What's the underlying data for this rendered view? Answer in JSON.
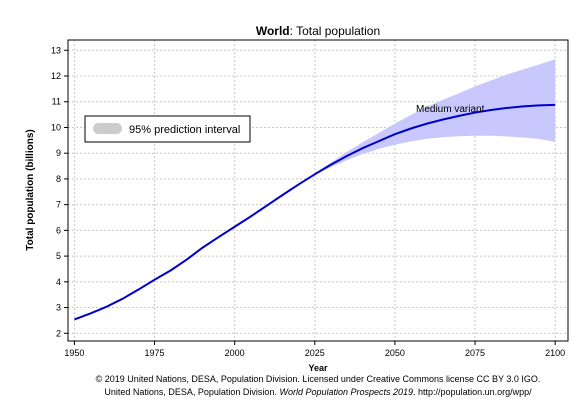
{
  "chart_data": {
    "type": "line",
    "title_bold": "World",
    "title_rest": ": Total population",
    "xlabel": "Year",
    "ylabel": "Total population (billions)",
    "xlim": [
      1948,
      2104
    ],
    "ylim": [
      1.7,
      13.4
    ],
    "xticks": [
      1950,
      1975,
      2000,
      2025,
      2050,
      2075,
      2100
    ],
    "yticks": [
      2,
      3,
      4,
      5,
      6,
      7,
      8,
      9,
      10,
      11,
      12,
      13
    ],
    "grid": true,
    "colors": {
      "line": "#0000cc",
      "band": "#c8c8ff",
      "grid": "#c9c9c9",
      "legend_swatch": "#cccccc"
    },
    "series": [
      {
        "name": "Medium variant",
        "x": [
          1950,
          1955,
          1960,
          1965,
          1970,
          1975,
          1980,
          1985,
          1990,
          1995,
          2000,
          2005,
          2010,
          2015,
          2020,
          2025,
          2030,
          2035,
          2040,
          2045,
          2050,
          2055,
          2060,
          2065,
          2070,
          2075,
          2080,
          2085,
          2090,
          2095,
          2100
        ],
        "values": [
          2.54,
          2.77,
          3.03,
          3.34,
          3.7,
          4.08,
          4.44,
          4.86,
          5.33,
          5.74,
          6.14,
          6.54,
          6.96,
          7.38,
          7.79,
          8.18,
          8.55,
          8.89,
          9.2,
          9.47,
          9.74,
          9.96,
          10.15,
          10.31,
          10.45,
          10.58,
          10.68,
          10.76,
          10.82,
          10.86,
          10.88
        ]
      }
    ],
    "interval": {
      "name": "95% prediction interval",
      "x": [
        2020,
        2025,
        2030,
        2035,
        2040,
        2045,
        2050,
        2055,
        2060,
        2065,
        2070,
        2075,
        2080,
        2085,
        2090,
        2095,
        2100
      ],
      "lower": [
        7.79,
        8.15,
        8.46,
        8.73,
        8.97,
        9.17,
        9.33,
        9.46,
        9.56,
        9.62,
        9.66,
        9.68,
        9.68,
        9.65,
        9.61,
        9.55,
        9.44
      ],
      "upper": [
        7.79,
        8.21,
        8.64,
        9.05,
        9.43,
        9.79,
        10.15,
        10.49,
        10.8,
        11.08,
        11.33,
        11.59,
        11.83,
        12.06,
        12.26,
        12.45,
        12.65
      ]
    },
    "legend": {
      "label": "95% prediction interval",
      "placement": "left"
    },
    "annotation": "Medium variant"
  },
  "footer": {
    "line1": "© 2019 United Nations, DESA, Population Division. Licensed under Creative Commons license CC BY 3.0 IGO.",
    "line2_prefix": "United Nations, DESA, Population Division. ",
    "line2_italic": "World Population Prospects 2019",
    "line2_suffix": ". http://population.un.org/wpp/"
  }
}
